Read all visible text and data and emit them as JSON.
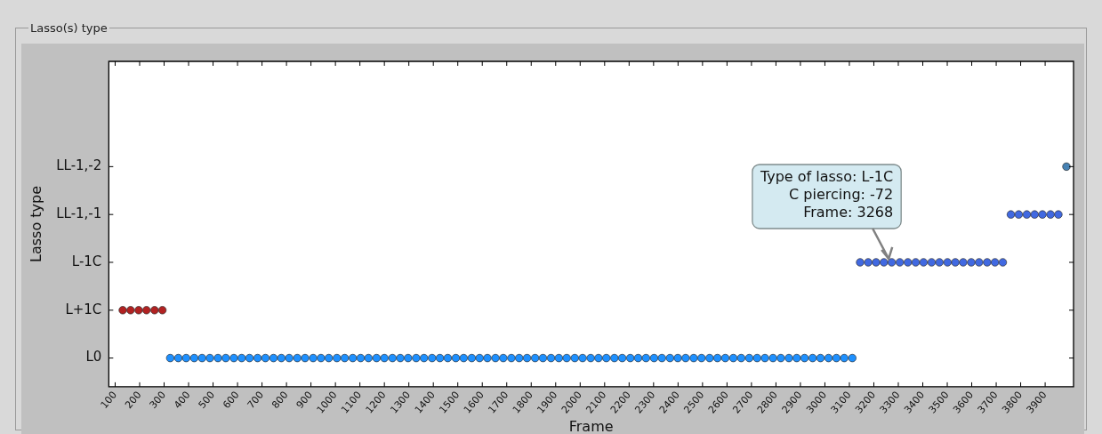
{
  "chart_data": {
    "type": "scatter",
    "orientation": "horizontal",
    "title": "Lasso(s) type",
    "xlabel": "Frame",
    "ylabel": "Lasso type",
    "marker": "circle",
    "grid": false,
    "legend": false,
    "xlim": [
      74,
      4016
    ],
    "xticks": [
      100,
      200,
      300,
      400,
      500,
      600,
      700,
      800,
      900,
      1000,
      1100,
      1200,
      1300,
      1400,
      1500,
      1600,
      1700,
      1800,
      1900,
      2000,
      2100,
      2200,
      2300,
      2400,
      2500,
      2600,
      2700,
      2800,
      2900,
      3000,
      3100,
      3200,
      3300,
      3400,
      3500,
      3600,
      3700,
      3800,
      3900
    ],
    "categories": [
      "LL-1,-2",
      "LL-1,-1",
      "L-1C",
      "L+1C",
      "L0"
    ],
    "series": [
      {
        "color": "#b22222",
        "x": [
          "L+1C",
          "L+1C",
          "L+1C",
          "L+1C",
          "L+1C",
          "L+1C"
        ],
        "values": [
          131,
          163,
          196,
          228,
          261,
          293
        ]
      },
      {
        "color": "#1e90ff",
        "x": [
          "L0",
          "L0",
          "L0",
          "L0",
          "L0",
          "L0",
          "L0",
          "L0",
          "L0",
          "L0",
          "L0",
          "L0",
          "L0",
          "L0",
          "L0",
          "L0",
          "L0",
          "L0",
          "L0",
          "L0",
          "L0",
          "L0",
          "L0",
          "L0",
          "L0",
          "L0",
          "L0",
          "L0",
          "L0",
          "L0",
          "L0",
          "L0",
          "L0",
          "L0",
          "L0",
          "L0",
          "L0",
          "L0",
          "L0",
          "L0",
          "L0",
          "L0",
          "L0",
          "L0",
          "L0",
          "L0",
          "L0",
          "L0",
          "L0",
          "L0",
          "L0",
          "L0",
          "L0",
          "L0",
          "L0",
          "L0",
          "L0",
          "L0",
          "L0",
          "L0",
          "L0",
          "L0",
          "L0",
          "L0",
          "L0",
          "L0",
          "L0",
          "L0",
          "L0",
          "L0",
          "L0",
          "L0",
          "L0",
          "L0",
          "L0",
          "L0",
          "L0",
          "L0",
          "L0",
          "L0",
          "L0",
          "L0",
          "L0",
          "L0",
          "L0",
          "L0",
          "L0"
        ],
        "values": [
          325,
          358,
          390,
          423,
          455,
          487,
          520,
          552,
          585,
          617,
          649,
          682,
          714,
          747,
          779,
          811,
          844,
          876,
          909,
          941,
          973,
          1006,
          1038,
          1071,
          1103,
          1135,
          1168,
          1200,
          1233,
          1265,
          1297,
          1330,
          1362,
          1395,
          1427,
          1459,
          1492,
          1524,
          1557,
          1589,
          1621,
          1654,
          1686,
          1719,
          1751,
          1783,
          1816,
          1848,
          1881,
          1913,
          1945,
          1978,
          2010,
          2043,
          2075,
          2107,
          2140,
          2172,
          2205,
          2237,
          2269,
          2302,
          2334,
          2367,
          2399,
          2431,
          2464,
          2496,
          2529,
          2561,
          2593,
          2626,
          2658,
          2691,
          2723,
          2755,
          2788,
          2820,
          2853,
          2885,
          2917,
          2950,
          2982,
          3015,
          3047,
          3079,
          3112
        ]
      },
      {
        "color": "#4169e1",
        "x": [
          "L-1C",
          "L-1C",
          "L-1C",
          "L-1C",
          "L-1C",
          "L-1C",
          "L-1C",
          "L-1C",
          "L-1C",
          "L-1C",
          "L-1C",
          "L-1C",
          "L-1C",
          "L-1C",
          "L-1C",
          "L-1C",
          "L-1C",
          "L-1C",
          "L-1C",
          "LL-1,-1",
          "LL-1,-1",
          "LL-1,-1",
          "LL-1,-1",
          "LL-1,-1",
          "LL-1,-1",
          "LL-1,-1"
        ],
        "values": [
          3144,
          3177,
          3209,
          3241,
          3273,
          3306,
          3339,
          3371,
          3403,
          3436,
          3468,
          3501,
          3533,
          3565,
          3598,
          3630,
          3663,
          3695,
          3727,
          3760,
          3792,
          3825,
          3857,
          3889,
          3922,
          3954
        ]
      },
      {
        "color": "#4682b4",
        "x": [
          "LL-1,-2"
        ],
        "values": [
          3987
        ]
      }
    ],
    "annotations": [
      {
        "text": "Type of lasso: L-1C\nC piercing: -72\nFrame: 3268",
        "x": 3268,
        "y": "L-1C"
      }
    ]
  }
}
